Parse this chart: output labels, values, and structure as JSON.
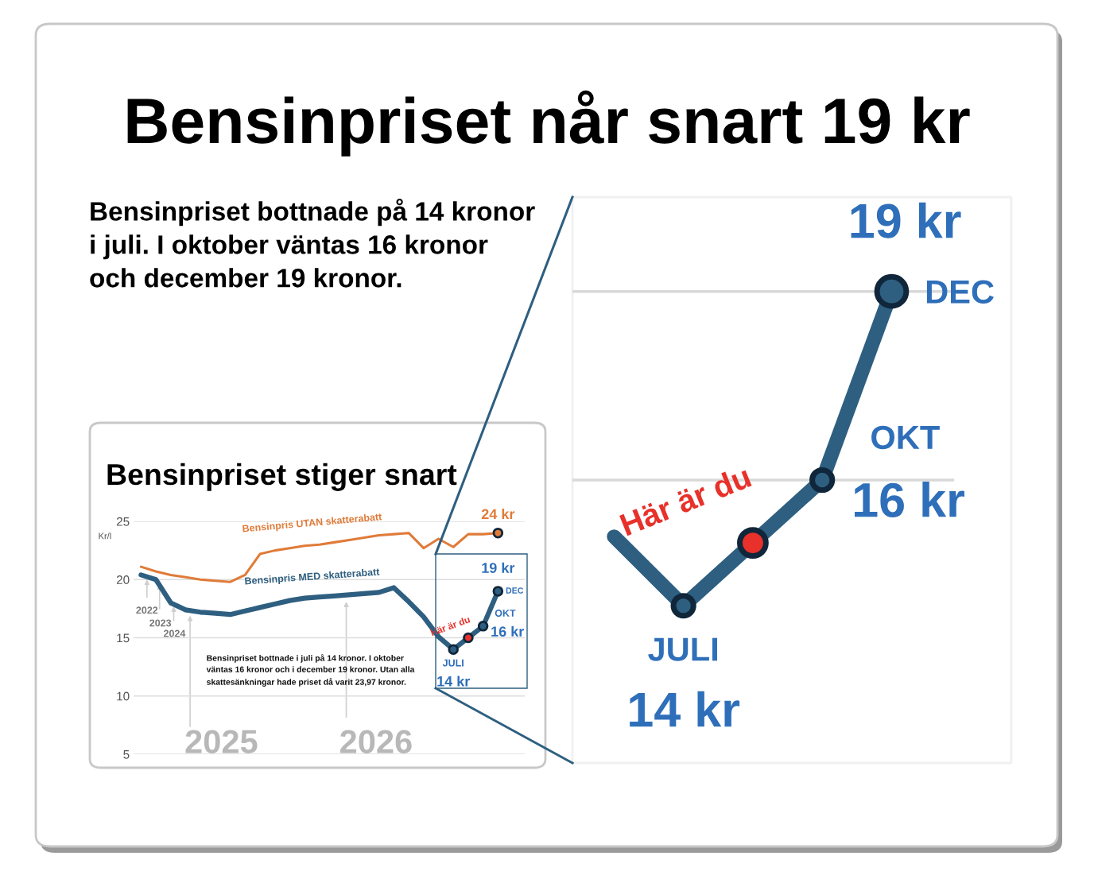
{
  "chart_data": [
    {
      "type": "line",
      "title": "Bensinpriset stiger snart",
      "ylabel": "Kr/l",
      "categories": [
        null,
        null,
        null,
        null,
        null,
        null,
        null,
        null,
        null,
        null,
        null,
        null,
        null,
        null,
        null,
        null,
        null,
        null,
        null,
        null,
        null,
        null,
        null,
        null,
        null
      ],
      "series": [
        {
          "name": "Bensinpris UTAN skatterabatt",
          "color": "#e07b39",
          "values": [
            21.1,
            20.7,
            20.4,
            20.2,
            20.0,
            19.9,
            19.8,
            20.4,
            22.2,
            22.5,
            22.7,
            22.9,
            23.0,
            23.2,
            23.4,
            23.6,
            23.8,
            23.9,
            24.0,
            22.7,
            23.5,
            22.8,
            23.9,
            23.9,
            24
          ],
          "colors": [
            null,
            null,
            null,
            null,
            null,
            null,
            null,
            null,
            null,
            null,
            null,
            null,
            null,
            null,
            null,
            null,
            null,
            null,
            null,
            null,
            null,
            null,
            null,
            null,
            "#e07b39"
          ],
          "value_labels": [
            null,
            null,
            null,
            null,
            null,
            null,
            null,
            null,
            null,
            null,
            null,
            null,
            null,
            null,
            null,
            null,
            null,
            null,
            null,
            null,
            null,
            null,
            null,
            null,
            "24 kr"
          ]
        },
        {
          "name": "Bensinpris MED skatterabatt",
          "color": "#2e5f80",
          "values": [
            20.4,
            20.0,
            18.0,
            17.4,
            17.2,
            17.1,
            17.0,
            17.3,
            17.6,
            17.9,
            18.2,
            18.4,
            18.5,
            18.6,
            18.7,
            18.8,
            18.9,
            19.3,
            18.1,
            16.8,
            15.1,
            14,
            15,
            16,
            19
          ],
          "colors": [
            null,
            null,
            null,
            null,
            null,
            null,
            null,
            null,
            null,
            null,
            null,
            null,
            null,
            null,
            null,
            null,
            null,
            null,
            null,
            null,
            null,
            "#2e5f80",
            "#e8312a",
            "#2e5f80",
            "#2e5f80"
          ],
          "value_labels": [
            null,
            null,
            null,
            null,
            null,
            null,
            null,
            null,
            null,
            null,
            null,
            null,
            null,
            null,
            null,
            null,
            null,
            null,
            null,
            null,
            null,
            "14 kr",
            null,
            "16 kr",
            "19 kr"
          ]
        }
      ],
      "ylim": [
        5,
        25
      ],
      "yticks": [
        5,
        10,
        15,
        20,
        25
      ],
      "grid": "y",
      "legend": false,
      "tick_labels": "y",
      "annotations": [
        "2022",
        "2023",
        "2024",
        "2025",
        "2026",
        "Bensinpriset bottnade i juli på 14 kronor. I oktober\nväntas 16 kronor och i december 19 kronor. Utan alla\nskattesänkningar hade priset då varit 23,97 kronor.",
        "JULI",
        "Här är du",
        "OKT",
        "DEC"
      ]
    },
    {
      "type": "line",
      "title": "Bensinpriset når snart 19 kr",
      "subtitle": "Bensinpriset bottnade på 14 kronor\ni juli. I oktober väntas 16 kronor\noch december 19 kronor.",
      "categories": [
        null,
        null,
        null,
        null,
        null
      ],
      "series": [
        {
          "color": "#2e5f80",
          "values": [
            15.1,
            14,
            15,
            16,
            19
          ],
          "colors": [
            null,
            "#2e5f80",
            "#e8312a",
            "#2e5f80",
            "#2e5f80"
          ],
          "value_labels": [
            null,
            "14 kr",
            null,
            "16 kr",
            "19 kr"
          ]
        }
      ],
      "ylim": [
        11.5,
        20.5
      ],
      "tick_labels": false,
      "marker": "circle",
      "ref_lines": [
        {
          "axis": "y",
          "value": 16,
          "color": "#d9d9d9"
        },
        {
          "axis": "y",
          "value": 19,
          "color": "#d9d9d9"
        }
      ],
      "annotations": [
        "JULI",
        "Här är du",
        "OKT",
        "DEC"
      ]
    }
  ]
}
